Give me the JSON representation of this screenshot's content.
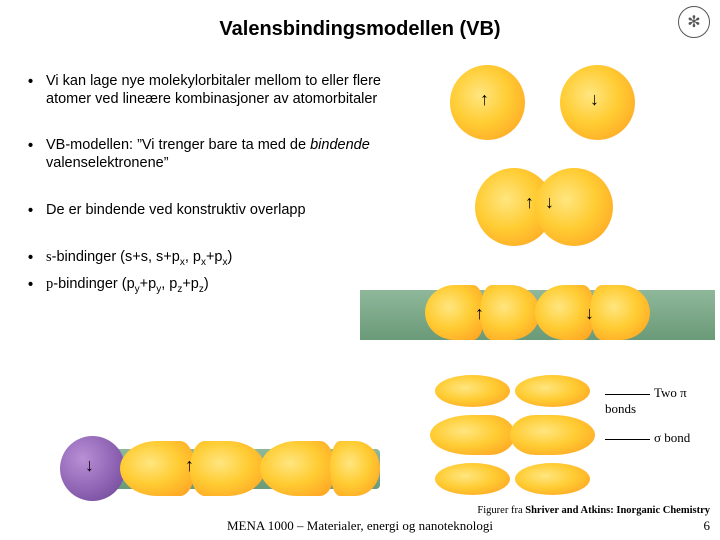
{
  "title": "Valensbindingsmodellen (VB)",
  "bullets": [
    {
      "html": "Vi kan lage nye molekylorbitaler mellom to eller flere atomer ved lineære kombinasjoner av atomorbitaler"
    },
    {
      "html": "VB-modellen: ”Vi trenger bare ta med de <span class='italic'>bindende</span> valenselektronene”"
    },
    {
      "html": "De er bindende ved konstruktiv overlapp"
    },
    {
      "html": "<span class='sym'>s</span>-bindinger (s+s, s+p<span class='sub'>x</span>, p<span class='sub'>x</span>+p<span class='sub'>x</span>)"
    },
    {
      "html": "<span class='sym'>p</span>-bindinger (p<span class='sub'>y</span>+p<span class='sub'>y</span>, p<span class='sub'>z</span>+p<span class='sub'>z</span>)"
    }
  ],
  "labels": {
    "two_pi": "Two π bonds",
    "sigma": "σ bond"
  },
  "attribution_prefix": "Figurer fra ",
  "attribution_source": "Shriver and Atkins: Inorganic Chemistry",
  "footer": "MENA 1000 – Materialer, energi og nanoteknologi",
  "page": "6",
  "colors": {
    "orange_light": "#ffe680",
    "orange_mid": "#ffcc33",
    "orange_dark": "#ff9a1f",
    "purple_light": "#b98fd6",
    "purple_dark": "#6a4290",
    "green_light": "#8fb89a",
    "green_dark": "#6a9a78"
  }
}
